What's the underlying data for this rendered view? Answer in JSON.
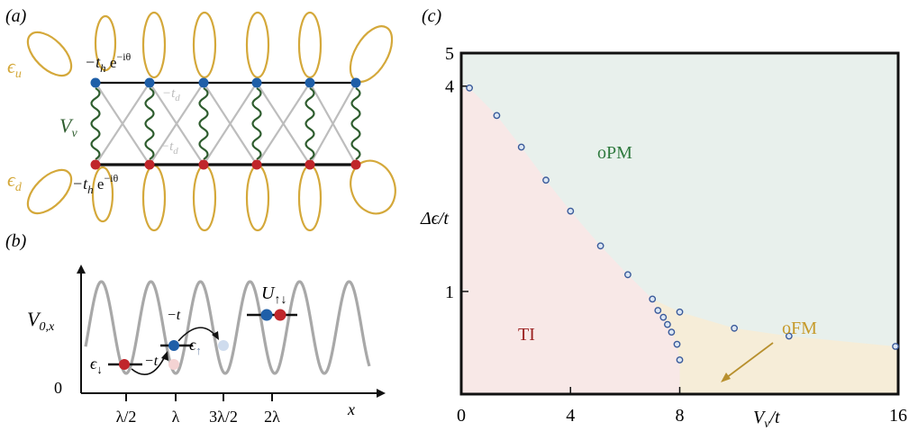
{
  "panels": {
    "a": {
      "label": "(a)",
      "epsilon_u": "ϵ",
      "epsilon_u_sub": "u",
      "epsilon_d": "ϵ",
      "epsilon_d_sub": "d",
      "hop_top_pre": "−t",
      "hop_top_sub": "h",
      "hop_top_exp": " e",
      "hop_top_sup": "−iθ",
      "hop_bottom_pre": "−t",
      "hop_bottom_sub": "h",
      "hop_bottom_exp": " e",
      "hop_bottom_sup": "−iθ",
      "td_upper_pre": "−t",
      "td_upper_sub": "d",
      "td_lower_pre": "−t",
      "td_lower_sub": "d",
      "vv_main": "V",
      "vv_sub": "v",
      "colors": {
        "up_site": "#1f5fa8",
        "down_site": "#c0262b",
        "orbital": "#d4a83a",
        "spring": "#2e5d2e",
        "diag": "#bdbdbd"
      }
    },
    "b": {
      "label": "(b)",
      "ylabel_main": "V",
      "ylabel_sub": "0,x",
      "zero_label": "0",
      "x_ticks": [
        "λ/2",
        "λ",
        "3λ/2",
        "2λ"
      ],
      "xlabel": "x",
      "eps_down": "ϵ",
      "eps_down_sub": "↓",
      "eps_up": "ϵ",
      "eps_up_sub": "↑",
      "hop1": "−t",
      "hop2": "−t",
      "hubbard_main": "U",
      "hubbard_sub": "↑↓"
    },
    "c": {
      "label": "(c)",
      "region_labels": {
        "opm": "oPM",
        "ti": "TI",
        "ofm": "oFM"
      },
      "colors": {
        "opm": "#e8f0ec",
        "ti": "#f8e8e7",
        "ofm": "#f6edd8",
        "opm_text": "#2f7a3f",
        "ti_text": "#9b2020",
        "ofm_text": "#c69a2a",
        "points": "#3a5a9a",
        "arrow": "#b8902e"
      }
    }
  },
  "chart_data": {
    "type": "scatter",
    "title": "",
    "xlabel": "V_v/t",
    "ylabel": "Δϵ/t",
    "xlim": [
      0,
      16
    ],
    "ylim": [
      0.5,
      5
    ],
    "y_scale": "log",
    "x_ticks": [
      "0",
      "4",
      "8",
      "16"
    ],
    "y_ticks": [
      "1",
      "4",
      "5"
    ],
    "grid": false,
    "series": [
      {
        "values": [
          {
            "x": 0.3,
            "y": 3.95
          },
          {
            "x": 1.3,
            "y": 3.28
          },
          {
            "x": 2.2,
            "y": 2.65
          },
          {
            "x": 3.1,
            "y": 2.12
          },
          {
            "x": 4.0,
            "y": 1.72
          },
          {
            "x": 5.1,
            "y": 1.36
          },
          {
            "x": 6.1,
            "y": 1.12
          },
          {
            "x": 7.0,
            "y": 0.95
          },
          {
            "x": 7.2,
            "y": 0.88
          },
          {
            "x": 7.4,
            "y": 0.84
          },
          {
            "x": 7.55,
            "y": 0.8
          },
          {
            "x": 7.7,
            "y": 0.76
          },
          {
            "x": 7.9,
            "y": 0.7
          },
          {
            "x": 8.0,
            "y": 0.87
          },
          {
            "x": 8.0,
            "y": 0.63
          },
          {
            "x": 10.0,
            "y": 0.78
          },
          {
            "x": 12.0,
            "y": 0.74
          },
          {
            "x": 15.9,
            "y": 0.69
          }
        ]
      }
    ]
  }
}
